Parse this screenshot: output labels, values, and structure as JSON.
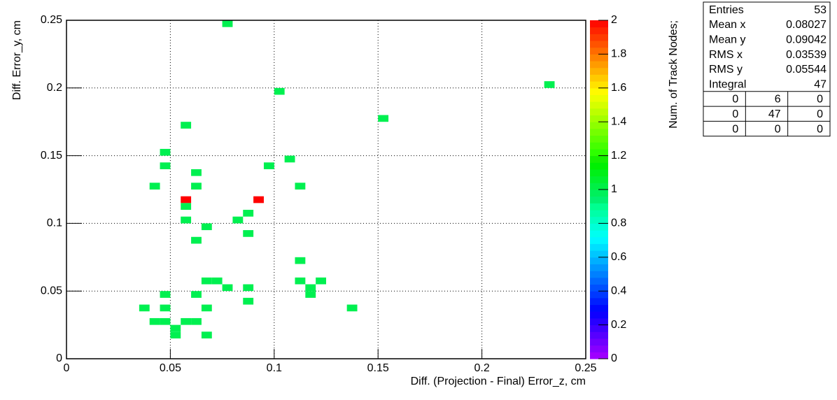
{
  "chart_data": {
    "type": "hist2d",
    "x_label": "Diff. (Projection - Final) Error_z, cm",
    "y_label": "Diff. Error_y, cm",
    "z_label": "Num. of Track Nodes;",
    "xlim": [
      0,
      0.25
    ],
    "ylim": [
      0,
      0.25
    ],
    "zlim": [
      0,
      2
    ],
    "xticks": [
      0,
      0.05,
      0.1,
      0.15,
      0.2,
      0.25
    ],
    "yticks": [
      0,
      0.05,
      0.1,
      0.15,
      0.2,
      0.25
    ],
    "zticks": [
      0,
      0.2,
      0.4,
      0.6,
      0.8,
      1,
      1.2,
      1.4,
      1.6,
      1.8,
      2
    ],
    "grid": true,
    "palette": "rainbow",
    "xbin_width": 0.005,
    "ybin_width": 0.005,
    "x": [
      0.0775,
      0.1025,
      0.2325,
      0.1525,
      0.0575,
      0.0475,
      0.0475,
      0.0975,
      0.1075,
      0.0625,
      0.0425,
      0.0625,
      0.1125,
      0.0575,
      0.0925,
      0.0575,
      0.0875,
      0.0825,
      0.0575,
      0.0675,
      0.0875,
      0.0625,
      0.1125,
      0.0675,
      0.0725,
      0.1125,
      0.1225,
      0.0775,
      0.0875,
      0.1175,
      0.1175,
      0.0475,
      0.0625,
      0.0875,
      0.0375,
      0.0475,
      0.0675,
      0.1375,
      0.0425,
      0.0475,
      0.0575,
      0.0625,
      0.0525,
      0.0525,
      0.0675
    ],
    "y": [
      0.2475,
      0.1975,
      0.2025,
      0.1775,
      0.1725,
      0.1525,
      0.1425,
      0.1425,
      0.1475,
      0.1375,
      0.1275,
      0.1275,
      0.1275,
      0.1175,
      0.1175,
      0.1125,
      0.1075,
      0.1025,
      0.1025,
      0.0975,
      0.0925,
      0.0875,
      0.0725,
      0.0575,
      0.0575,
      0.0575,
      0.0575,
      0.0525,
      0.0525,
      0.0525,
      0.0475,
      0.0475,
      0.0475,
      0.0425,
      0.0375,
      0.0375,
      0.0375,
      0.0375,
      0.0275,
      0.0275,
      0.0275,
      0.0275,
      0.0225,
      0.0175,
      0.0175
    ],
    "values": [
      1,
      1,
      1,
      1,
      1,
      1,
      1,
      1,
      1,
      1,
      1,
      1,
      1,
      2,
      2,
      1,
      1,
      1,
      1,
      1,
      1,
      1,
      1,
      1,
      1,
      1,
      1,
      1,
      1,
      1,
      1,
      1,
      1,
      1,
      1,
      1,
      1,
      1,
      1,
      1,
      1,
      1,
      1,
      1,
      1
    ],
    "stats": {
      "rows": [
        [
          "Entries",
          53
        ],
        [
          "Mean x",
          0.08027
        ],
        [
          "Mean y",
          0.09042
        ],
        [
          "RMS x",
          0.03539
        ],
        [
          "RMS y",
          0.05544
        ],
        [
          "Integral",
          47
        ]
      ],
      "table": [
        [
          0,
          6,
          0
        ],
        [
          0,
          47,
          0
        ],
        [
          0,
          0,
          0
        ]
      ]
    }
  }
}
